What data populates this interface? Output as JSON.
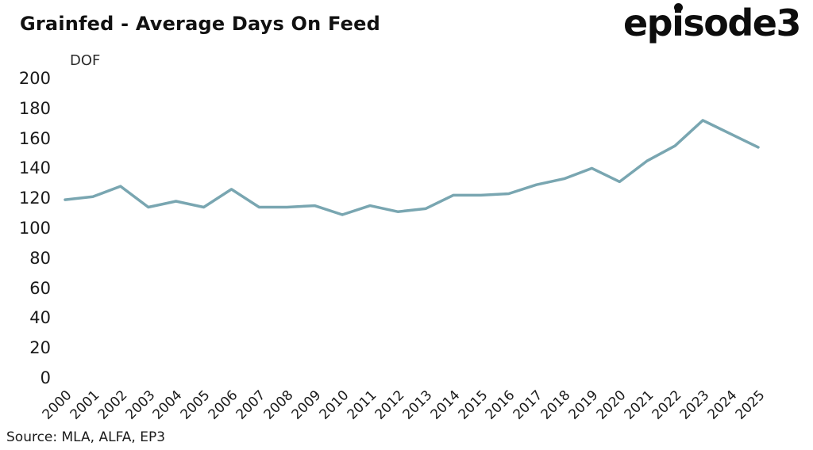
{
  "header": {
    "title": "Grainfed - Average Days On Feed",
    "logo_text": "episode3"
  },
  "chart_data": {
    "type": "line",
    "title": "Grainfed - Average Days On Feed",
    "xlabel": "",
    "ylabel": "DOF",
    "ylim": [
      0,
      200
    ],
    "ytick_step": 20,
    "grid": false,
    "legend_position": "none",
    "line_color": "#79a6b1",
    "categories": [
      "2000",
      "2001",
      "2002",
      "2003",
      "2004",
      "2005",
      "2006",
      "2007",
      "2008",
      "2009",
      "2010",
      "2011",
      "2012",
      "2013",
      "2014",
      "2015",
      "2016",
      "2017",
      "2018",
      "2019",
      "2020",
      "2021",
      "2022",
      "2023",
      "2024",
      "2025"
    ],
    "series": [
      {
        "name": "Average Days On Feed",
        "values": [
          119,
          121,
          128,
          114,
          118,
          114,
          126,
          114,
          114,
          115,
          109,
          115,
          111,
          113,
          122,
          122,
          123,
          129,
          133,
          140,
          131,
          145,
          155,
          172,
          163,
          154
        ]
      }
    ]
  },
  "footer": {
    "source": "Source: MLA, ALFA, EP3"
  }
}
